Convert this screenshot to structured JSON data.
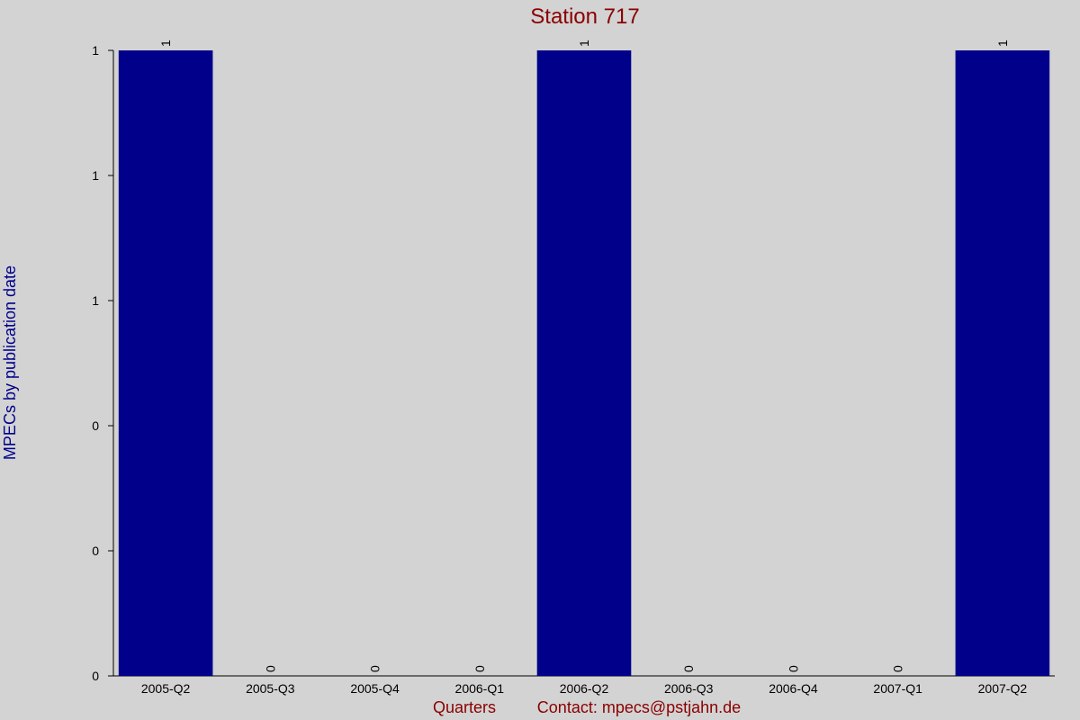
{
  "chart_data": {
    "type": "bar",
    "title": "Station 717",
    "x_label": "Quarters",
    "footer": "Contact: mpecs@pstjahn.de",
    "y_label": "MPECs by publication date",
    "categories": [
      "2005-Q2",
      "2005-Q3",
      "2005-Q4",
      "2006-Q1",
      "2006-Q2",
      "2006-Q3",
      "2006-Q4",
      "2007-Q1",
      "2007-Q2"
    ],
    "values": [
      1,
      0,
      0,
      0,
      1,
      0,
      0,
      0,
      1
    ],
    "color": "#00008b",
    "ylim": [
      0,
      1
    ],
    "yticks": [
      0,
      {
        "value": 0.2,
        "label": "0"
      },
      {
        "value": 0.4,
        "label": "0"
      },
      {
        "value": 0.6,
        "label": "1"
      },
      {
        "value": 0.8,
        "label": "1"
      },
      1
    ]
  }
}
